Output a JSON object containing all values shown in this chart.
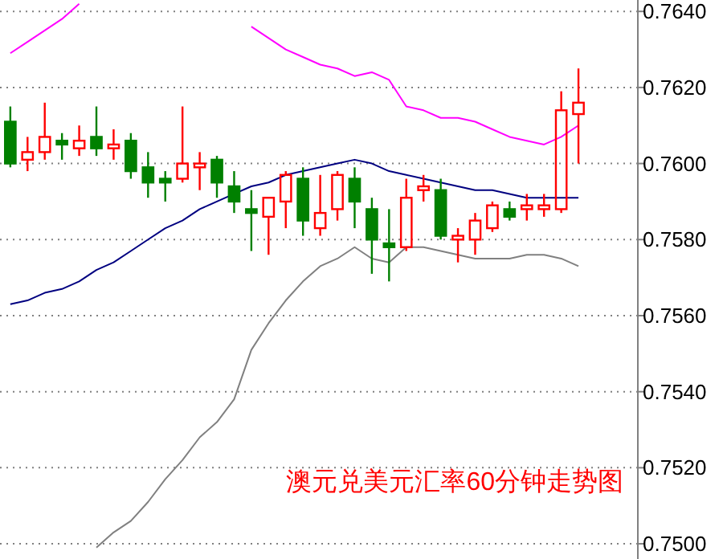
{
  "chart_data": {
    "type": "candlestick",
    "categories": [
      null,
      null,
      null,
      null,
      null,
      null,
      null,
      null,
      null,
      null,
      null,
      null,
      null,
      null,
      null,
      null,
      null,
      null,
      null,
      null,
      null,
      null,
      null,
      null,
      null,
      null,
      null,
      null,
      null,
      null,
      null,
      null,
      null,
      null
    ],
    "ohlc": [
      [
        0.7611,
        0.7615,
        0.7599,
        0.76
      ],
      [
        0.7601,
        0.7607,
        0.7598,
        0.7603
      ],
      [
        0.7603,
        0.7616,
        0.7601,
        0.7607
      ],
      [
        0.7606,
        0.7608,
        0.7601,
        0.7605
      ],
      [
        0.7604,
        0.761,
        0.7602,
        0.7606
      ],
      [
        0.7607,
        0.7615,
        0.7602,
        0.7604
      ],
      [
        0.7604,
        0.7609,
        0.7601,
        0.7605
      ],
      [
        0.7606,
        0.7608,
        0.7596,
        0.7598
      ],
      [
        0.7599,
        0.7603,
        0.7591,
        0.7595
      ],
      [
        0.7596,
        0.7598,
        0.759,
        0.7595
      ],
      [
        0.7596,
        0.7615,
        0.7595,
        0.76
      ],
      [
        0.7599,
        0.7603,
        0.7593,
        0.76
      ],
      [
        0.7601,
        0.7602,
        0.7591,
        0.7595
      ],
      [
        0.7594,
        0.7598,
        0.7587,
        0.759
      ],
      [
        0.7588,
        0.7593,
        0.7577,
        0.7587
      ],
      [
        0.7586,
        0.7591,
        0.7576,
        0.7591
      ],
      [
        0.759,
        0.7598,
        0.7583,
        0.7597
      ],
      [
        0.7596,
        0.7599,
        0.7581,
        0.7585
      ],
      [
        0.7583,
        0.7597,
        0.7581,
        0.7587
      ],
      [
        0.7588,
        0.7598,
        0.7585,
        0.7597
      ],
      [
        0.7596,
        0.7599,
        0.7583,
        0.759
      ],
      [
        0.7588,
        0.7591,
        0.7571,
        0.758
      ],
      [
        0.7579,
        0.7588,
        0.7569,
        0.7578
      ],
      [
        0.7578,
        0.7596,
        0.7577,
        0.7591
      ],
      [
        0.7593,
        0.7597,
        0.759,
        0.7594
      ],
      [
        0.7593,
        0.7596,
        0.758,
        0.7581
      ],
      [
        0.758,
        0.7583,
        0.7574,
        0.7581
      ],
      [
        0.758,
        0.7587,
        0.7576,
        0.7585
      ],
      [
        0.7583,
        0.759,
        0.7582,
        0.7589
      ],
      [
        0.7588,
        0.759,
        0.7585,
        0.7586
      ],
      [
        0.7588,
        0.7592,
        0.7585,
        0.7589
      ],
      [
        0.7588,
        0.7592,
        0.7586,
        0.7589
      ],
      [
        0.7588,
        0.7619,
        0.7587,
        0.7614
      ],
      [
        0.7613,
        0.7625,
        0.76,
        0.7616
      ]
    ],
    "colors": [
      "#008000",
      "#ff0000",
      "#ff0000",
      "#008000",
      "#ff0000",
      "#008000",
      "#ff0000",
      "#008000",
      "#008000",
      "#008000",
      "#ff0000",
      "#ff0000",
      "#008000",
      "#008000",
      "#008000",
      "#ff0000",
      "#ff0000",
      "#008000",
      "#ff0000",
      "#ff0000",
      "#008000",
      "#008000",
      "#008000",
      "#ff0000",
      "#ff0000",
      "#008000",
      "#ff0000",
      "#ff0000",
      "#ff0000",
      "#008000",
      "#ff0000",
      "#ff0000",
      "#ff0000",
      "#ff0000"
    ],
    "series": [
      {
        "type": "line",
        "color": "#ff00ff",
        "values": [
          0.7629,
          0.7632,
          0.7635,
          0.7638,
          0.7642,
          null,
          null,
          null,
          null,
          null,
          null,
          null,
          null,
          null,
          0.7636,
          0.7633,
          0.763,
          0.7628,
          0.7626,
          0.7625,
          0.7623,
          0.7624,
          0.7622,
          0.7615,
          0.7614,
          0.7612,
          0.7612,
          0.7611,
          0.7609,
          0.7607,
          0.7606,
          0.7605,
          0.7607,
          0.761
        ]
      },
      {
        "type": "line",
        "color": "#000080",
        "values": [
          0.7563,
          0.7564,
          0.7566,
          0.7567,
          0.7569,
          0.7572,
          0.7574,
          0.7577,
          0.758,
          0.7583,
          0.7585,
          0.7588,
          0.759,
          0.7592,
          0.7594,
          0.7595,
          0.7597,
          0.7598,
          0.7599,
          0.76,
          0.7601,
          0.76,
          0.7598,
          0.7597,
          0.7596,
          0.7595,
          0.7594,
          0.7593,
          0.7593,
          0.7592,
          0.7591,
          0.7591,
          0.7591,
          0.7591
        ]
      },
      {
        "type": "line",
        "color": "#808080",
        "values": [
          null,
          null,
          null,
          null,
          null,
          0.7499,
          0.7503,
          0.7506,
          0.7511,
          0.7517,
          0.7522,
          0.7528,
          0.7532,
          0.7538,
          0.7551,
          0.7558,
          0.7564,
          0.7569,
          0.7573,
          0.7575,
          0.7578,
          0.7575,
          0.7574,
          0.7578,
          0.7578,
          0.7577,
          0.7576,
          0.7575,
          0.7575,
          0.7575,
          0.7576,
          0.7576,
          0.7575,
          0.7573
        ]
      }
    ],
    "ylim": [
      0.7496,
      0.7643
    ],
    "yticks": [
      {
        "value": 0.75,
        "label": "0.7500"
      },
      {
        "value": 0.752,
        "label": "0.7520"
      },
      {
        "value": 0.754,
        "label": "0.7540"
      },
      {
        "value": 0.756,
        "label": "0.7560"
      },
      {
        "value": 0.758,
        "label": "0.7580"
      },
      {
        "value": 0.76,
        "label": "0.7600"
      },
      {
        "value": 0.762,
        "label": "0.7620"
      },
      {
        "value": 0.764,
        "label": "0.7640"
      }
    ],
    "grid": "y",
    "tick_labels": "y",
    "annotations": [
      "澳元兑美元汇率60分钟走势图"
    ]
  }
}
